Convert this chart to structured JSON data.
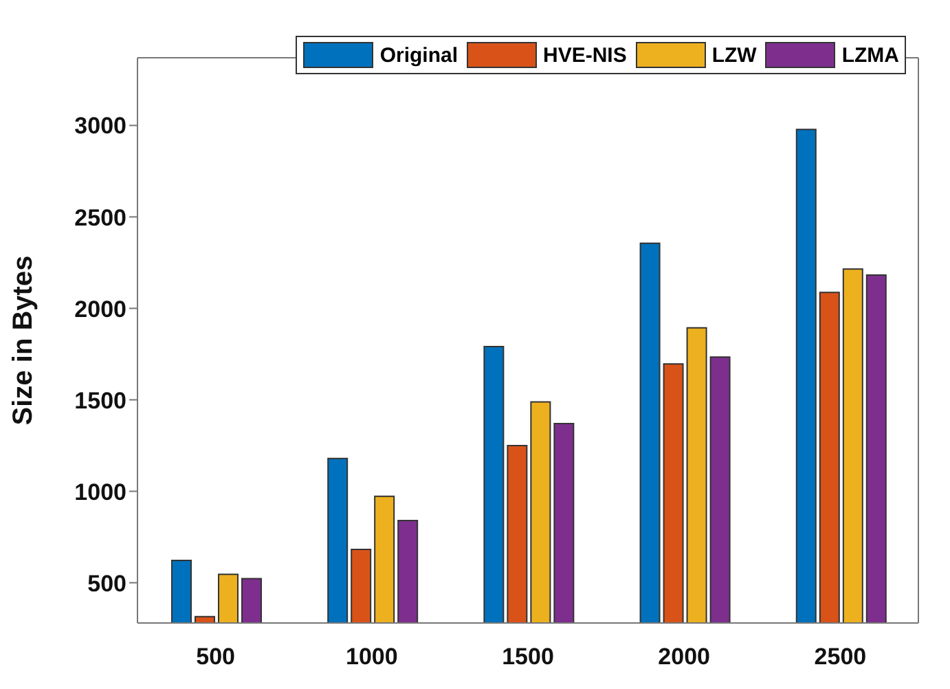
{
  "chart_data": {
    "type": "bar",
    "ylabel": "Size in Bytes",
    "categories": [
      "500",
      "1000",
      "1500",
      "2000",
      "2500"
    ],
    "series": [
      {
        "name": "Original",
        "color": "#0072bd",
        "values": [
          622,
          1179,
          1791,
          2356,
          2978
        ]
      },
      {
        "name": "HVE-NIS",
        "color": "#d95319",
        "values": [
          315,
          682,
          1250,
          1696,
          2087
        ]
      },
      {
        "name": "LZW",
        "color": "#edb120",
        "values": [
          546,
          973,
          1489,
          1894,
          2215
        ]
      },
      {
        "name": "LZMA",
        "color": "#7e2f8e",
        "values": [
          522,
          840,
          1370,
          1734,
          2182
        ]
      }
    ],
    "ylim": [
      280,
      3370
    ],
    "yticks": [
      500,
      1000,
      1500,
      2000,
      2500,
      3000
    ],
    "grid": false,
    "legend": "top right"
  }
}
